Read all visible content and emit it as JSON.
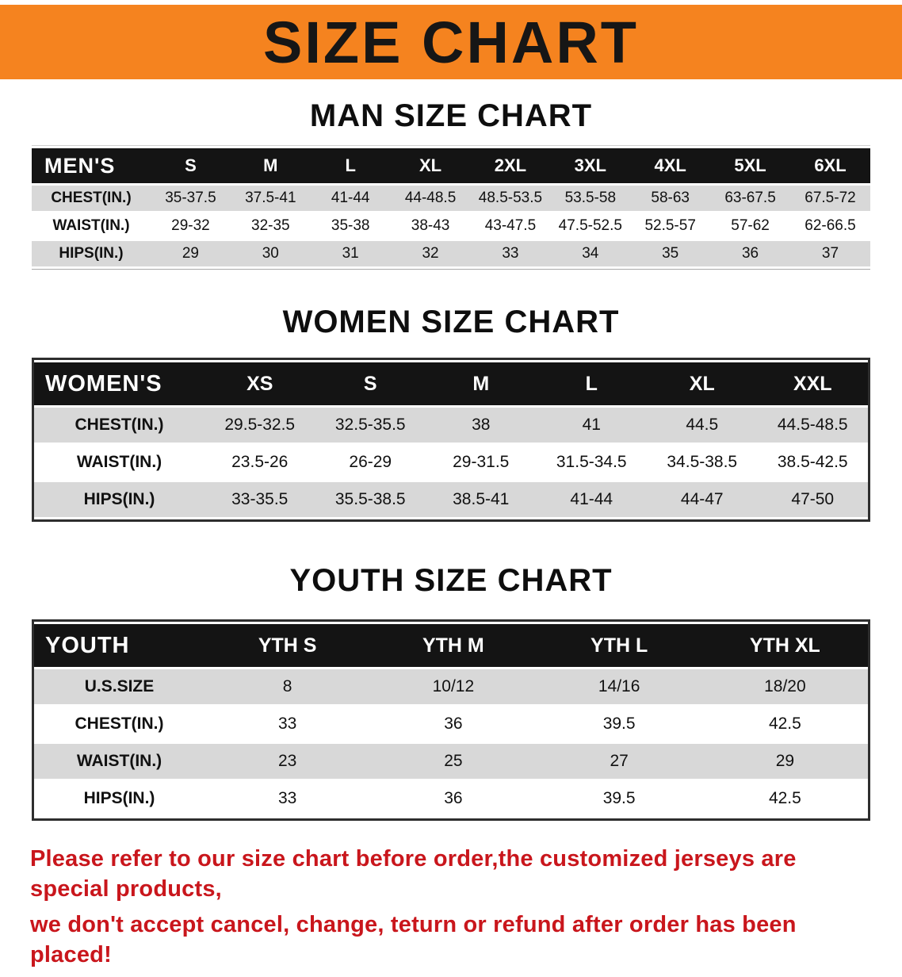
{
  "banner": {
    "title": "SIZE CHART",
    "bg_color": "#f5831f",
    "text_color": "#161616"
  },
  "sections": [
    {
      "heading": "MAN SIZE CHART",
      "table": {
        "header_label": "MEN'S",
        "columns": [
          "S",
          "M",
          "L",
          "XL",
          "2XL",
          "3XL",
          "4XL",
          "5XL",
          "6XL"
        ],
        "rows": [
          {
            "label": "CHEST(IN.)",
            "values": [
              "35-37.5",
              "37.5-41",
              "41-44",
              "44-48.5",
              "48.5-53.5",
              "53.5-58",
              "58-63",
              "63-67.5",
              "67.5-72"
            ]
          },
          {
            "label": "WAIST(IN.)",
            "values": [
              "29-32",
              "32-35",
              "35-38",
              "38-43",
              "43-47.5",
              "47.5-52.5",
              "52.5-57",
              "57-62",
              "62-66.5"
            ]
          },
          {
            "label": "HIPS(IN.)",
            "values": [
              "29",
              "30",
              "31",
              "32",
              "33",
              "34",
              "35",
              "36",
              "37"
            ]
          }
        ]
      }
    },
    {
      "heading": "WOMEN SIZE CHART",
      "table": {
        "header_label": "WOMEN'S",
        "columns": [
          "XS",
          "S",
          "M",
          "L",
          "XL",
          "XXL"
        ],
        "rows": [
          {
            "label": "CHEST(IN.)",
            "values": [
              "29.5-32.5",
              "32.5-35.5",
              "38",
              "41",
              "44.5",
              "44.5-48.5"
            ]
          },
          {
            "label": "WAIST(IN.)",
            "values": [
              "23.5-26",
              "26-29",
              "29-31.5",
              "31.5-34.5",
              "34.5-38.5",
              "38.5-42.5"
            ]
          },
          {
            "label": "HIPS(IN.)",
            "values": [
              "33-35.5",
              "35.5-38.5",
              "38.5-41",
              "41-44",
              "44-47",
              "47-50"
            ]
          }
        ]
      }
    },
    {
      "heading": "YOUTH SIZE CHART",
      "table": {
        "header_label": "YOUTH",
        "columns": [
          "YTH S",
          "YTH M",
          "YTH L",
          "YTH XL"
        ],
        "rows": [
          {
            "label": "U.S.SIZE",
            "values": [
              "8",
              "10/12",
              "14/16",
              "18/20"
            ]
          },
          {
            "label": "CHEST(IN.)",
            "values": [
              "33",
              "36",
              "39.5",
              "42.5"
            ]
          },
          {
            "label": "WAIST(IN.)",
            "values": [
              "23",
              "25",
              "27",
              "29"
            ]
          },
          {
            "label": "HIPS(IN.)",
            "values": [
              "33",
              "36",
              "39.5",
              "42.5"
            ]
          }
        ]
      }
    }
  ],
  "footer": {
    "line1": "Please refer to our size chart before order,the customized jerseys are special products,",
    "line2": "we don't accept cancel, change, teturn or refund after order has been placed!",
    "text_color": "#c9161c"
  },
  "colors": {
    "row_shaded": "#d8d8d8",
    "header_bg": "#141414"
  }
}
